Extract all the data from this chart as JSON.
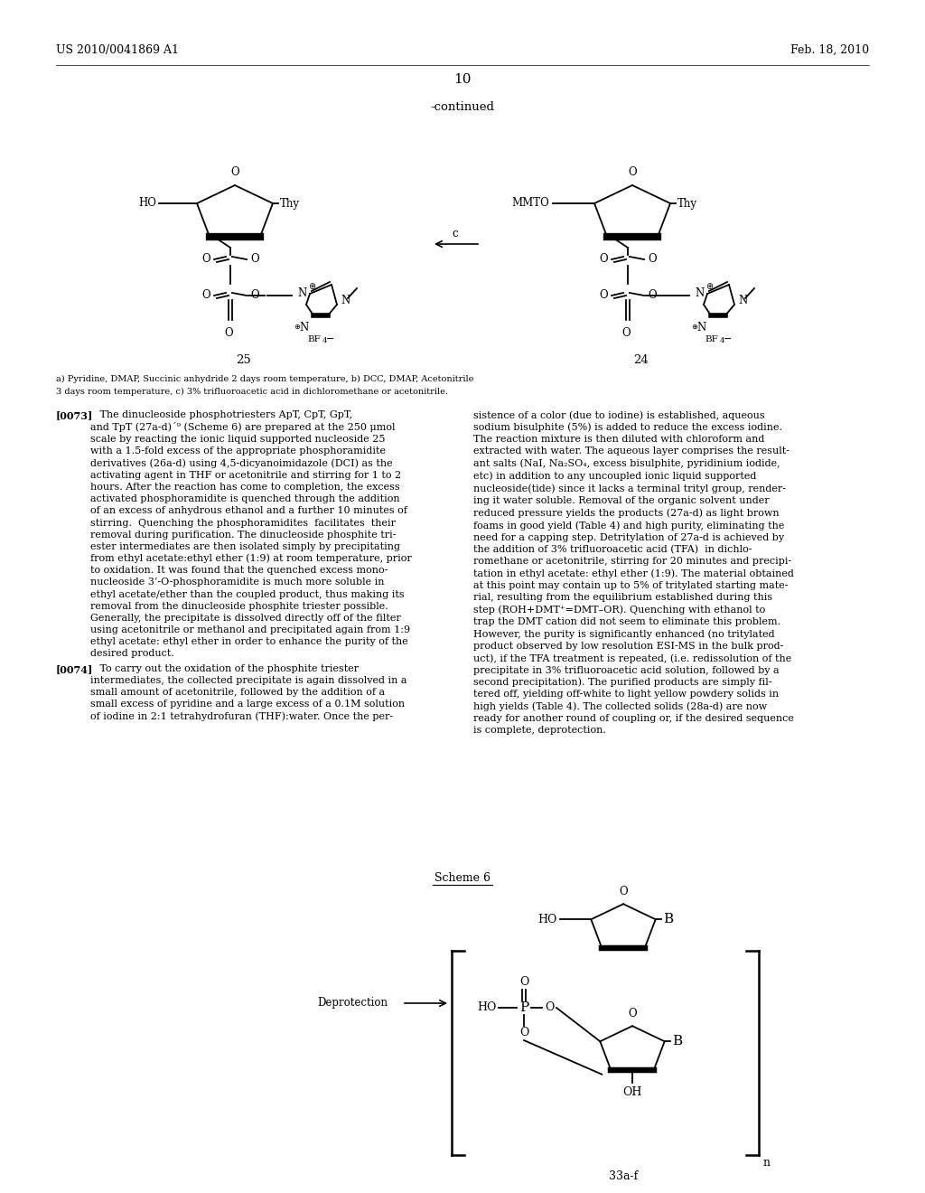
{
  "bg_color": "#ffffff",
  "header_left": "US 2010/0041869 A1",
  "header_right": "Feb. 18, 2010",
  "page_number": "10",
  "continued_text": "-continued",
  "scheme_label": "Scheme 6",
  "compound_25_label": "25",
  "compound_24_label": "24",
  "footnote_line1": "a) Pyridine, DMAP, Succinic anhydride 2 days room temperature, b) DCC, DMAP, Acetonitrile",
  "footnote_line2": "3 days room temperature, c) 3% trifluoroacetic acid in dichloromethane or acetonitrile.",
  "para_0073_title": "[0073]",
  "para_0074_title": "[0074]",
  "left_col_73": "   The dinucleoside phosphotriesters ApT, CpT, GpT,\nand TpT (27a-d)´⁹ (Scheme 6) are prepared at the 250 μmol\nscale by reacting the ionic liquid supported nucleoside 25\nwith a 1.5-fold excess of the appropriate phosphoramidite\nderivatives (26a-d) using 4,5-dicyanoimidazole (DCI) as the\nactivating agent in THF or acetonitrile and stirring for 1 to 2\nhours. After the reaction has come to completion, the excess\nactivated phosphoramidite is quenched through the addition\nof an excess of anhydrous ethanol and a further 10 minutes of\nstirring.  Quenching the phosphoramidites  facilitates  their\nremoval during purification. The dinucleoside phosphite tri-\nester intermediates are then isolated simply by precipitating\nfrom ethyl acetate:ethyl ether (1:9) at room temperature, prior\nto oxidation. It was found that the quenched excess mono-\nnucleoside 3’-O-phosphoramidite is much more soluble in\nethyl acetate/ether than the coupled product, thus making its\nremoval from the dinucleoside phosphite triester possible.\nGenerally, the precipitate is dissolved directly off of the filter\nusing acetonitrile or methanol and precipitated again from 1:9\nethyl acetate: ethyl ether in order to enhance the purity of the\ndesired product.",
  "right_col_73": "sistence of a color (due to iodine) is established, aqueous\nsodium bisulphite (5%) is added to reduce the excess iodine.\nThe reaction mixture is then diluted with chloroform and\nextracted with water. The aqueous layer comprises the result-\nant salts (NaI, Na₂SO₄, excess bisulphite, pyridinium iodide,\netc) in addition to any uncoupled ionic liquid supported\nnucleoside(tide) since it lacks a terminal trityl group, render-\ning it water soluble. Removal of the organic solvent under\nreduced pressure yields the products (27a-d) as light brown\nfoams in good yield (Table 4) and high purity, eliminating the\nneed for a capping step. Detritylation of 27a-d is achieved by\nthe addition of 3% trifluoroacetic acid (TFA)  in dichlo-\nromethane or acetonitrile, stirring for 20 minutes and precipi-\ntation in ethyl acetate: ethyl ether (1:9). The material obtained\nat this point may contain up to 5% of tritylated starting mate-\nrial, resulting from the equilibrium established during this\nstep (ROH+DMT⁺=DMT–OR). Quenching with ethanol to\ntrap the DMT cation did not seem to eliminate this problem.\nHowever, the purity is significantly enhanced (no tritylated\nproduct observed by low resolution ESI-MS in the bulk prod-\nuct), if the TFA treatment is repeated, (i.e. redissolution of the\nprecipitate in 3% trifluoroacetic acid solution, followed by a\nsecond precipitation). The purified products are simply fil-\ntered off, yielding off-white to light yellow powdery solids in\nhigh yields (Table 4). The collected solids (28a-d) are now\nready for another round of coupling or, if the desired sequence\nis complete, deprotection.",
  "left_col_74": "   To carry out the oxidation of the phosphite triester\nintermediates, the collected precipitate is again dissolved in a\nsmall amount of acetonitrile, followed by the addition of a\nsmall excess of pyridine and a large excess of a 0.1M solution\nof iodine in 2:1 tetrahydrofuran (THF):water. Once the per-",
  "label_33af": "33a-f",
  "label_deprotection": "Deprotection",
  "label_HO_top": "HO",
  "label_O_ring": "O",
  "label_B_top": "B",
  "label_B_bottom": "B",
  "label_HO_P": "HO",
  "label_P": "P",
  "label_O_above_P": "O",
  "label_O_right_P": "O",
  "label_O_below_P": "O",
  "label_OH": "OH"
}
